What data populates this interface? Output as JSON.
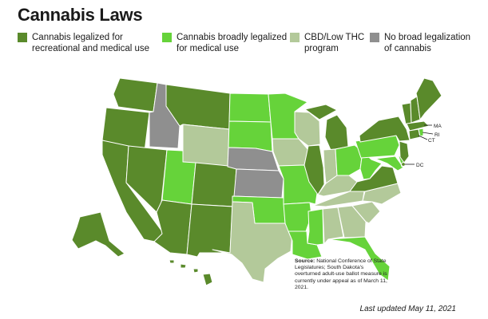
{
  "title": "Cannabis Laws",
  "legend": [
    {
      "label": "Cannabis legalized for\nrecreational and medical use",
      "color": "#5a8a2b"
    },
    {
      "label": "Cannabis broadly legalized\nfor medical use",
      "color": "#66d33a"
    },
    {
      "label": "CBD/Low THC\nprogram",
      "color": "#b3c99a"
    },
    {
      "label": "No broad legalization\nof cannabis",
      "color": "#8f8f8f"
    }
  ],
  "state_labels": {
    "ma": "MA",
    "ri": "RI",
    "ct": "CT",
    "dc": "DC"
  },
  "source_bold": "Source:",
  "source_text": " National Conference of State Legislatures; South Dakota's overturned adult-use ballot measure is currently under appeal as of March 11, 2021.",
  "last_updated": "Last updated May 11, 2021"
}
